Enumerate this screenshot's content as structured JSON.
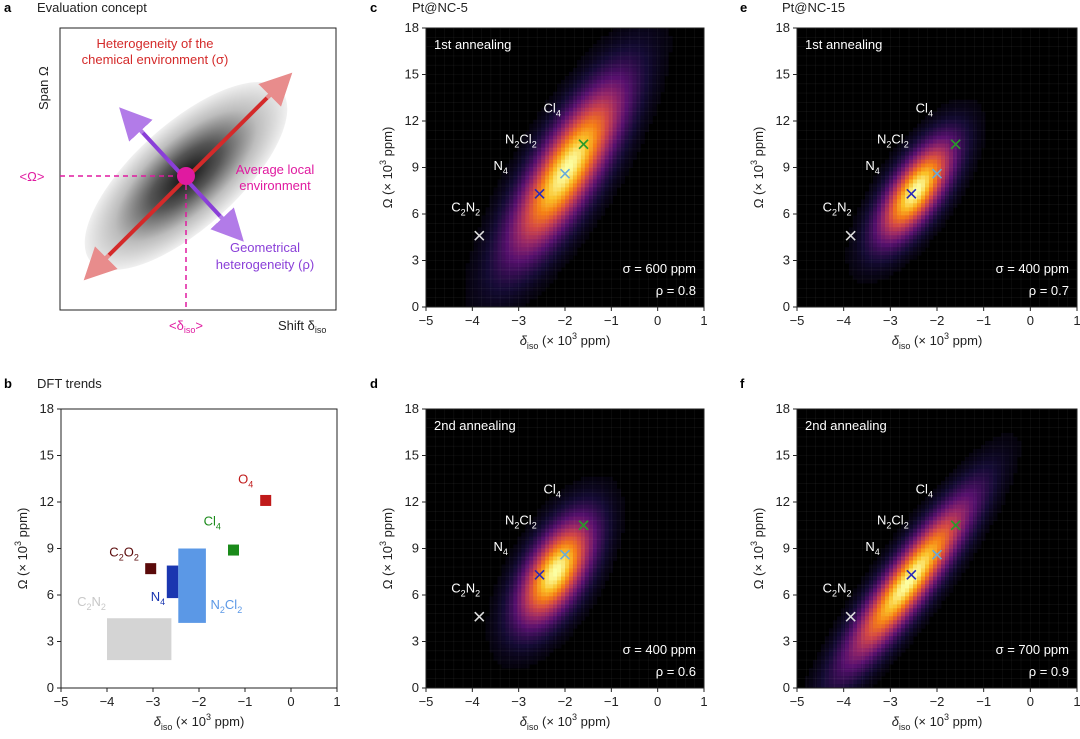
{
  "panel_labels": {
    "a": "a",
    "b": "b",
    "c": "c",
    "d": "d",
    "e": "e",
    "f": "f"
  },
  "panel_titles": {
    "a": "Evaluation concept",
    "b": "DFT trends",
    "c": "Pt@NC-5",
    "e": "Pt@NC-15"
  },
  "concept": {
    "ylabel": "Span Ω",
    "xlabel": "Shift δ",
    "xlabel_sub": "iso",
    "chem_label": [
      "Heterogeneity of the",
      "chemical environment (σ)"
    ],
    "avg_label": [
      "Average local",
      "environment"
    ],
    "geo_label": [
      "Geometrical",
      "heterogeneity (ρ)"
    ],
    "omega_mark": "<Ω>",
    "delta_mark": "<δ",
    "delta_mark_sub": "iso",
    "delta_mark_end": ">",
    "colors": {
      "chem": "#d42a2a",
      "geo": "#8a3fd8",
      "avg": "#e01aa0"
    }
  },
  "axes_text": {
    "xlabel_pre": "δ",
    "xlabel_sub": "iso",
    "xlabel_post": " (× 10",
    "xlabel_sup": "3",
    "xlabel_end": " ppm)",
    "ylabel_pre": "Ω (× 10",
    "ylabel_sup": "3",
    "ylabel_end": " ppm)"
  },
  "chart_data": [
    {
      "panel": "b",
      "type": "scatter",
      "title": "DFT trends",
      "xlim": [
        -5,
        1
      ],
      "ylim": [
        0,
        18
      ],
      "xticks": [
        -5,
        -4,
        -3,
        -2,
        -1,
        0,
        1
      ],
      "yticks": [
        0,
        3,
        6,
        9,
        12,
        15,
        18
      ],
      "regions": [
        {
          "name": "C2N2",
          "x": [
            -4.0,
            -2.6
          ],
          "y": [
            1.8,
            4.5
          ],
          "color": "#d4d4d4",
          "label": "C",
          "label_sub1": "2",
          "label_mid": "N",
          "label_sub2": "2"
        },
        {
          "name": "N4",
          "x": [
            -2.7,
            -2.45
          ],
          "y": [
            5.8,
            7.9
          ],
          "color": "#1a36b0",
          "label": "N",
          "label_sub1": "4"
        },
        {
          "name": "N2Cl2",
          "x": [
            -2.45,
            -1.85
          ],
          "y": [
            4.2,
            9.0
          ],
          "color": "#5b98e6",
          "label": "N",
          "label_sub1": "2",
          "label_mid": "Cl",
          "label_sub2": "2"
        }
      ],
      "points": [
        {
          "name": "C2O2",
          "x": -3.05,
          "y": 7.7,
          "color": "#5a0a0a",
          "label": "C",
          "label_sub1": "2",
          "label_mid": "O",
          "label_sub2": "2"
        },
        {
          "name": "Cl4",
          "x": -1.25,
          "y": 8.9,
          "color": "#1a8a1a",
          "label": "Cl",
          "label_sub1": "4"
        },
        {
          "name": "O4",
          "x": -0.55,
          "y": 12.1,
          "color": "#c01a1a",
          "label": "O",
          "label_sub1": "4"
        }
      ]
    },
    {
      "panel": "c",
      "type": "heatmap",
      "title": "Pt@NC-5",
      "annealing": "1st annealing",
      "xlim": [
        -5,
        1
      ],
      "ylim": [
        0,
        18
      ],
      "xticks": [
        -5,
        -4,
        -3,
        -2,
        -1,
        0,
        1
      ],
      "yticks": [
        0,
        3,
        6,
        9,
        12,
        15,
        18
      ],
      "sigma": "σ = 600 ppm",
      "rho": "ρ = 0.8",
      "distribution": {
        "cx": -1.95,
        "cy": 8.9,
        "sx": 0.75,
        "sy": 3.4,
        "corr": 0.8
      },
      "markers": [
        {
          "name": "C2N2",
          "x": -3.85,
          "y": 4.6,
          "color": "#dddddd",
          "label": "C",
          "label_sub1": "2",
          "label_mid": "N",
          "label_sub2": "2"
        },
        {
          "name": "N4",
          "x": -2.55,
          "y": 7.3,
          "color": "#2a2ab8",
          "label": "N",
          "label_sub1": "4"
        },
        {
          "name": "N2Cl2",
          "x": -2.0,
          "y": 8.6,
          "color": "#6aaad8",
          "label": "N",
          "label_sub1": "2",
          "label_mid": "Cl",
          "label_sub2": "2"
        },
        {
          "name": "Cl4",
          "x": -1.6,
          "y": 10.5,
          "color": "#2a9a2a",
          "label": "Cl",
          "label_sub1": "4"
        }
      ]
    },
    {
      "panel": "d",
      "type": "heatmap",
      "title": "",
      "annealing": "2nd annealing",
      "xlim": [
        -5,
        1
      ],
      "ylim": [
        0,
        18
      ],
      "xticks": [
        -5,
        -4,
        -3,
        -2,
        -1,
        0,
        1
      ],
      "yticks": [
        0,
        3,
        6,
        9,
        12,
        15,
        18
      ],
      "sigma": "σ = 400 ppm",
      "rho": "ρ = 0.6",
      "distribution": {
        "cx": -2.2,
        "cy": 7.5,
        "sx": 0.5,
        "sy": 2.1,
        "corr": 0.6
      },
      "markers": [
        {
          "name": "C2N2",
          "x": -3.85,
          "y": 4.6,
          "color": "#dddddd",
          "label": "C",
          "label_sub1": "2",
          "label_mid": "N",
          "label_sub2": "2"
        },
        {
          "name": "N4",
          "x": -2.55,
          "y": 7.3,
          "color": "#2a2ab8",
          "label": "N",
          "label_sub1": "4"
        },
        {
          "name": "N2Cl2",
          "x": -2.0,
          "y": 8.6,
          "color": "#6aaad8",
          "label": "N",
          "label_sub1": "2",
          "label_mid": "Cl",
          "label_sub2": "2"
        },
        {
          "name": "Cl4",
          "x": -1.6,
          "y": 10.5,
          "color": "#2a9a2a",
          "label": "Cl",
          "label_sub1": "4"
        }
      ]
    },
    {
      "panel": "e",
      "type": "heatmap",
      "title": "Pt@NC-15",
      "annealing": "1st annealing",
      "xlim": [
        -5,
        1
      ],
      "ylim": [
        0,
        18
      ],
      "xticks": [
        -5,
        -4,
        -3,
        -2,
        -1,
        0,
        1
      ],
      "yticks": [
        0,
        3,
        6,
        9,
        12,
        15,
        18
      ],
      "sigma": "σ = 400 ppm",
      "rho": "ρ = 0.7",
      "distribution": {
        "cx": -2.45,
        "cy": 7.5,
        "sx": 0.5,
        "sy": 2.0,
        "corr": 0.7
      },
      "markers": [
        {
          "name": "C2N2",
          "x": -3.85,
          "y": 4.6,
          "color": "#dddddd",
          "label": "C",
          "label_sub1": "2",
          "label_mid": "N",
          "label_sub2": "2"
        },
        {
          "name": "N4",
          "x": -2.55,
          "y": 7.3,
          "color": "#2a2ab8",
          "label": "N",
          "label_sub1": "4"
        },
        {
          "name": "N2Cl2",
          "x": -2.0,
          "y": 8.6,
          "color": "#6aaad8",
          "label": "N",
          "label_sub1": "2",
          "label_mid": "Cl",
          "label_sub2": "2"
        },
        {
          "name": "Cl4",
          "x": -1.6,
          "y": 10.5,
          "color": "#2a9a2a",
          "label": "Cl",
          "label_sub1": "4"
        }
      ]
    },
    {
      "panel": "f",
      "type": "heatmap",
      "title": "",
      "annealing": "2nd annealing",
      "xlim": [
        -5,
        1
      ],
      "ylim": [
        0,
        18
      ],
      "xticks": [
        -5,
        -4,
        -3,
        -2,
        -1,
        0,
        1
      ],
      "yticks": [
        0,
        3,
        6,
        9,
        12,
        15,
        18
      ],
      "sigma": "σ = 700 ppm",
      "rho": "ρ = 0.9",
      "distribution": {
        "cx": -2.6,
        "cy": 6.9,
        "sx": 0.8,
        "sy": 3.2,
        "corr": 0.9
      },
      "markers": [
        {
          "name": "C2N2",
          "x": -3.85,
          "y": 4.6,
          "color": "#dddddd",
          "label": "C",
          "label_sub1": "2",
          "label_mid": "N",
          "label_sub2": "2"
        },
        {
          "name": "N4",
          "x": -2.55,
          "y": 7.3,
          "color": "#2a2ab8",
          "label": "N",
          "label_sub1": "4"
        },
        {
          "name": "N2Cl2",
          "x": -2.0,
          "y": 8.6,
          "color": "#6aaad8",
          "label": "N",
          "label_sub1": "2",
          "label_mid": "Cl",
          "label_sub2": "2"
        },
        {
          "name": "Cl4",
          "x": -1.6,
          "y": 10.5,
          "color": "#2a9a2a",
          "label": "Cl",
          "label_sub1": "4"
        }
      ]
    }
  ]
}
